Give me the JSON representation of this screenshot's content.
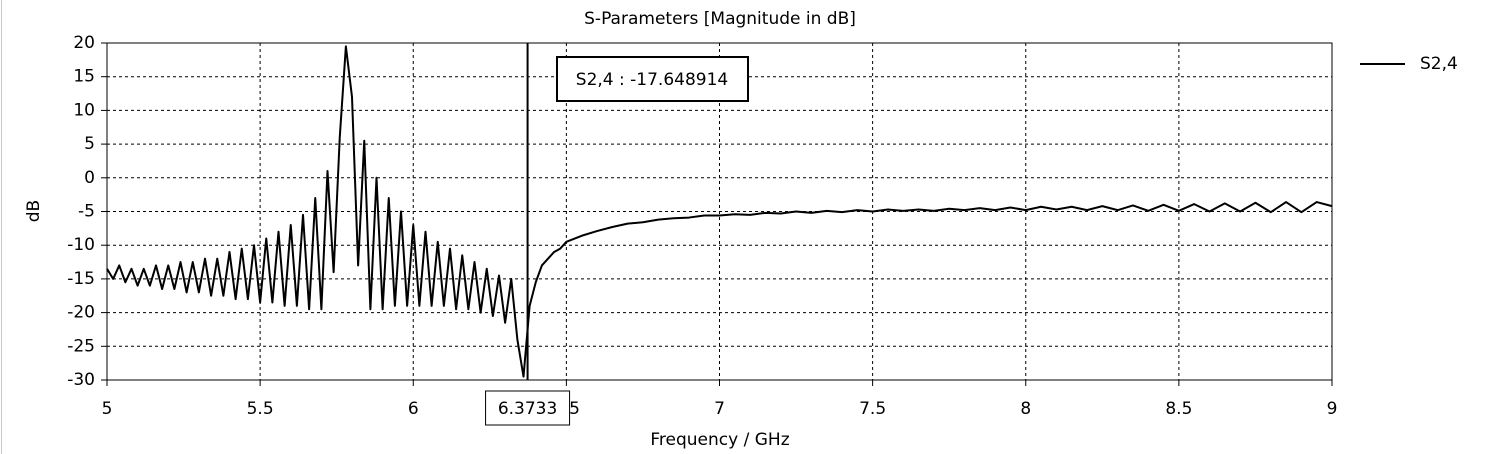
{
  "chart_data": {
    "type": "line",
    "title": "S-Parameters [Magnitude in dB]",
    "x_label": "Frequency / GHz",
    "y_label": "dB",
    "xlim": [
      5,
      9
    ],
    "xticks": [
      5,
      5.5,
      6,
      6.5,
      7,
      7.5,
      8,
      8.5,
      9
    ],
    "ylim": [
      -30,
      20
    ],
    "yticks": [
      -30,
      -25,
      -20,
      -15,
      -10,
      -5,
      0,
      5,
      10,
      15,
      20
    ],
    "grid": true,
    "legend": "right",
    "marker_x": 6.3733,
    "marker_annotation": "S2,4 : -17.648914",
    "x": [
      5.0,
      5.02,
      5.04,
      5.06,
      5.08,
      5.1,
      5.12,
      5.14,
      5.16,
      5.18,
      5.2,
      5.22,
      5.24,
      5.26,
      5.28,
      5.3,
      5.32,
      5.34,
      5.36,
      5.38,
      5.4,
      5.42,
      5.44,
      5.46,
      5.48,
      5.5,
      5.52,
      5.54,
      5.56,
      5.58,
      5.6,
      5.62,
      5.64,
      5.66,
      5.68,
      5.7,
      5.72,
      5.74,
      5.76,
      5.78,
      5.8,
      5.82,
      5.84,
      5.86,
      5.88,
      5.9,
      5.92,
      5.94,
      5.96,
      5.98,
      6.0,
      6.02,
      6.04,
      6.06,
      6.08,
      6.1,
      6.12,
      6.14,
      6.16,
      6.18,
      6.2,
      6.22,
      6.24,
      6.26,
      6.28,
      6.3,
      6.32,
      6.34,
      6.36,
      6.38,
      6.4,
      6.42,
      6.44,
      6.46,
      6.48,
      6.5,
      6.55,
      6.6,
      6.65,
      6.7,
      6.75,
      6.8,
      6.85,
      6.9,
      6.95,
      7.0,
      7.05,
      7.1,
      7.15,
      7.2,
      7.25,
      7.3,
      7.35,
      7.4,
      7.45,
      7.5,
      7.55,
      7.6,
      7.65,
      7.7,
      7.75,
      7.8,
      7.85,
      7.9,
      7.95,
      8.0,
      8.05,
      8.1,
      8.15,
      8.2,
      8.25,
      8.3,
      8.35,
      8.4,
      8.45,
      8.5,
      8.55,
      8.6,
      8.65,
      8.7,
      8.75,
      8.8,
      8.85,
      8.9,
      8.95,
      9.0
    ],
    "series": [
      {
        "name": "S2,4",
        "color": "#000000",
        "values": [
          -13.5,
          -15,
          -13,
          -15.5,
          -13.5,
          -16,
          -13.5,
          -16,
          -13,
          -16.5,
          -13,
          -16.5,
          -12.5,
          -17,
          -12.5,
          -17,
          -12,
          -17.5,
          -12,
          -17.5,
          -11,
          -18,
          -10.5,
          -18,
          -10,
          -18.5,
          -9,
          -18.5,
          -8,
          -19,
          -7,
          -19,
          -5.5,
          -19.5,
          -3,
          -19.5,
          1,
          -14,
          6,
          19.5,
          12,
          -13,
          5.5,
          -19.5,
          0,
          -19.5,
          -3,
          -19,
          -5,
          -19,
          -7,
          -19,
          -8,
          -19,
          -9.5,
          -19,
          -10.5,
          -19.5,
          -11.5,
          -19.5,
          -12.5,
          -20,
          -13.5,
          -20.5,
          -14.5,
          -21.5,
          -15,
          -24,
          -29.5,
          -19,
          -15.5,
          -13,
          -12,
          -11,
          -10.5,
          -9.5,
          -8.6,
          -7.9,
          -7.3,
          -6.8,
          -6.6,
          -6.2,
          -6.0,
          -5.9,
          -5.6,
          -5.6,
          -5.4,
          -5.5,
          -5.2,
          -5.3,
          -5.0,
          -5.2,
          -4.9,
          -5.1,
          -4.8,
          -5.0,
          -4.7,
          -4.9,
          -4.7,
          -4.9,
          -4.6,
          -4.8,
          -4.5,
          -4.8,
          -4.4,
          -4.8,
          -4.3,
          -4.7,
          -4.3,
          -4.8,
          -4.2,
          -4.8,
          -4.1,
          -4.9,
          -4.0,
          -4.9,
          -3.9,
          -5.0,
          -3.8,
          -5.0,
          -3.7,
          -5.1,
          -3.6,
          -5.1,
          -3.6,
          -4.2
        ]
      }
    ]
  }
}
